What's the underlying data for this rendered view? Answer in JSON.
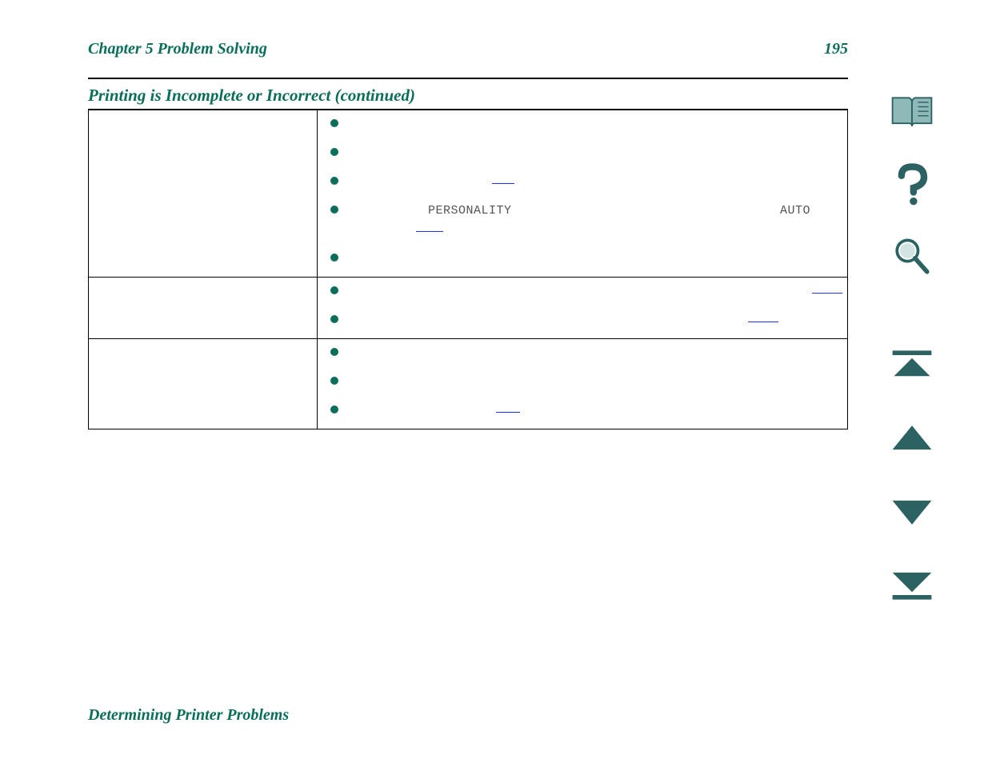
{
  "header": {
    "chapter_label": "Chapter 5    Problem Solving",
    "page_number": "195"
  },
  "section_title": "Printing is Incomplete or Incorrect (continued)",
  "table": {
    "rows": [
      {
        "left": "",
        "right_items": [
          {
            "text": " ",
            "code_parts": [],
            "link_widths": []
          },
          {
            "text": " ",
            "code_parts": [],
            "link_widths": []
          },
          {
            "text": " ",
            "code_parts": [],
            "link_widths": [
              28
            ]
          },
          {
            "text": " ",
            "code_parts": [
              "PERSONALITY",
              "AUTO"
            ],
            "link_widths": [
              34
            ],
            "code_positions": [
              100,
              540
            ],
            "link_positions": [
              85
            ]
          },
          {
            "text": " ",
            "code_parts": [],
            "link_widths": []
          }
        ]
      },
      {
        "left": "",
        "right_items": [
          {
            "text": " ",
            "code_parts": [],
            "link_widths": [
              38
            ],
            "link_positions": [
              580
            ]
          },
          {
            "text": " ",
            "code_parts": [],
            "link_widths": [
              38
            ],
            "link_positions": [
              500
            ]
          }
        ]
      },
      {
        "left": "",
        "right_items": [
          {
            "text": " ",
            "code_parts": [],
            "link_widths": []
          },
          {
            "text": " ",
            "code_parts": [],
            "link_widths": []
          },
          {
            "text": " ",
            "code_parts": [],
            "link_widths": [
              30
            ],
            "link_positions": [
              185
            ]
          }
        ]
      }
    ]
  },
  "footer_title": "Determining Printer Problems",
  "sidebar_icons": [
    {
      "name": "book-open-icon",
      "type": "book"
    },
    {
      "name": "help-icon",
      "type": "question"
    },
    {
      "name": "search-icon",
      "type": "magnifier"
    },
    {
      "name": "go-top-icon",
      "type": "top"
    },
    {
      "name": "page-up-icon",
      "type": "up"
    },
    {
      "name": "page-down-icon",
      "type": "down"
    },
    {
      "name": "go-bottom-icon",
      "type": "bottom"
    }
  ],
  "colors": {
    "accent": "#0a6e5a",
    "link": "#2030ff",
    "code_text": "#555555",
    "icon_fill": "#2d6262",
    "icon_light": "#8fb8b8"
  }
}
